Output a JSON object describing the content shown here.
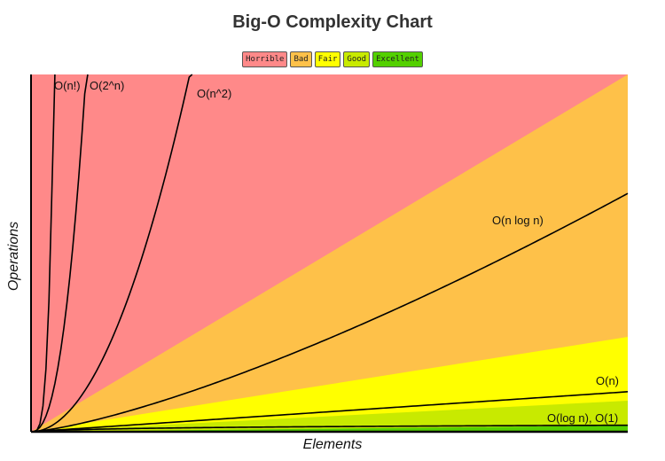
{
  "chart_data": {
    "type": "area",
    "title": "Big-O Complexity Chart",
    "xlabel": "Elements",
    "ylabel": "Operations",
    "grid": false,
    "legend_placement": "top-center",
    "legend": [
      {
        "label": "Horrible",
        "color": "#ff8989"
      },
      {
        "label": "Bad",
        "color": "#fec149"
      },
      {
        "label": "Fair",
        "color": "#ffff00"
      },
      {
        "label": "Good",
        "color": "#c8ea00"
      },
      {
        "label": "Excellent",
        "color": "#53d000"
      }
    ],
    "series": [
      {
        "name": "O(n!)",
        "label": "O(n!)"
      },
      {
        "name": "O(2^n)",
        "label": "O(2^n)"
      },
      {
        "name": "O(n^2)",
        "label": "O(n^2)"
      },
      {
        "name": "O(n log n)",
        "label": "O(n log n)"
      },
      {
        "name": "O(n)",
        "label": "O(n)"
      },
      {
        "name": "O(log n), O(1)",
        "label": "O(log n), O(1)"
      }
    ]
  }
}
